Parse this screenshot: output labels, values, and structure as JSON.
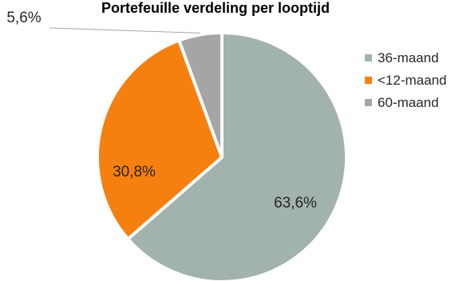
{
  "chart_data": {
    "type": "pie",
    "title": "Portefeuille verdeling per looptijd",
    "categories": [
      "36-maand",
      "<12-maand",
      "60-maand"
    ],
    "values": [
      63.6,
      30.8,
      5.6
    ],
    "value_labels": [
      "63,6%",
      "30,8%",
      "5,6%"
    ],
    "colors": [
      "#a2b2ae",
      "#f57f0f",
      "#a5a5a5"
    ],
    "legend_position": "right",
    "start_angle": "12 o'clock",
    "direction": "clockwise"
  }
}
